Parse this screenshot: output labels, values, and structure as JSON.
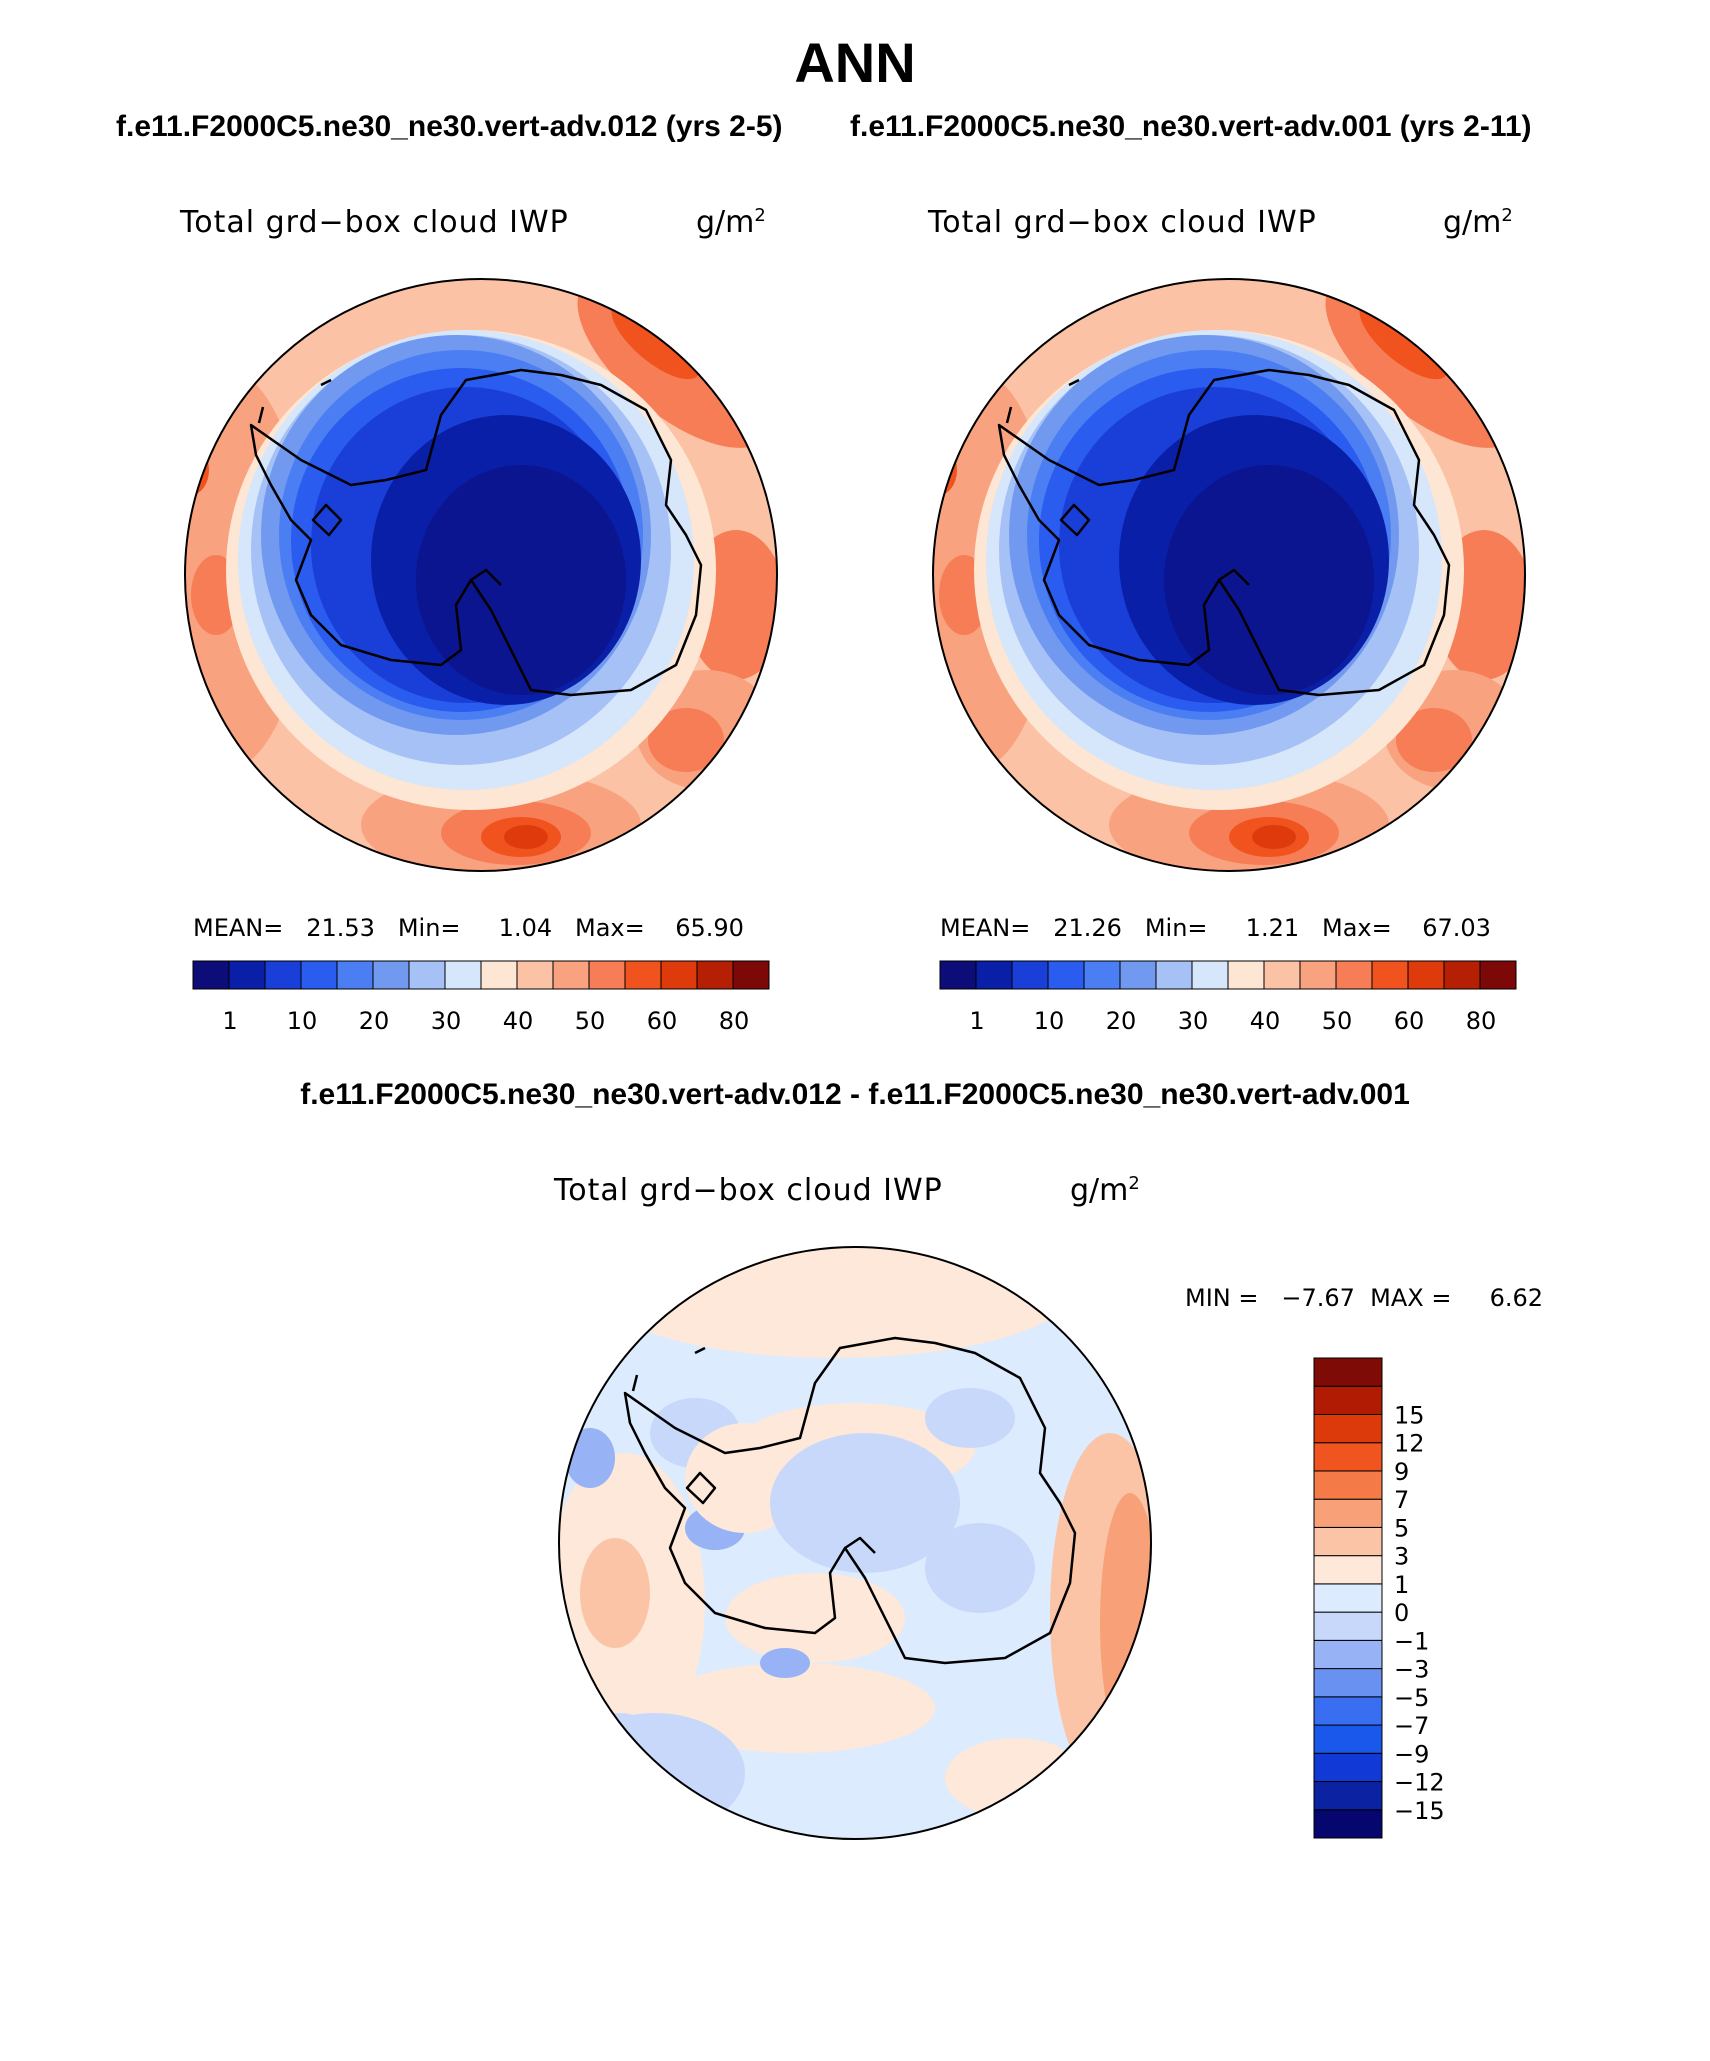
{
  "page": {
    "title": "ANN",
    "case_left_title": "f.e11.F2000C5.ne30_ne30.vert-adv.012 (yrs 2-5)",
    "case_right_title": "f.e11.F2000C5.ne30_ne30.vert-adv.001 (yrs 2-11)",
    "diff_title": "f.e11.F2000C5.ne30_ne30.vert-adv.012 - f.e11.F2000C5.ne30_ne30.vert-adv.001"
  },
  "panels": [
    {
      "variable": "Total grd−box cloud IWP",
      "unit_base": "g/m",
      "unit_exp": "2",
      "stats": "MEAN=   21.53   Min=     1.04   Max=    65.90"
    },
    {
      "variable": "Total grd−box cloud IWP",
      "unit_base": "g/m",
      "unit_exp": "2",
      "stats": "MEAN=   21.26   Min=     1.21   Max=    67.03"
    },
    {
      "variable": "Total grd−box cloud IWP",
      "unit_base": "g/m",
      "unit_exp": "2",
      "stats": "MIN =   −7.67  MAX =     6.62"
    }
  ],
  "colorbars": {
    "absolute": {
      "colors": [
        "#0d0d7a",
        "#0a1fa8",
        "#1a3fd8",
        "#2a5cf0",
        "#4a7ef2",
        "#7199f0",
        "#a6c1f5",
        "#d6e6fb",
        "#fde6d3",
        "#fcc2a5",
        "#f9a27f",
        "#f67d55",
        "#f1531f",
        "#de3a0c",
        "#b52005",
        "#7d0808"
      ],
      "tick_labels": [
        "1",
        "10",
        "20",
        "30",
        "40",
        "50",
        "60",
        "80"
      ]
    },
    "difference": {
      "colors": [
        "#05066e",
        "#0b22a2",
        "#1039d6",
        "#1a58ec",
        "#3a6ef2",
        "#6891f2",
        "#97b3f5",
        "#c7d8fa",
        "#dcebfd",
        "#fde8da",
        "#fbc4a6",
        "#f8a078",
        "#f47a48",
        "#f0541f",
        "#dd3a0c",
        "#b21b03",
        "#7e0b06"
      ],
      "tick_labels": [
        "−15",
        "−12",
        "−9",
        "−7",
        "−5",
        "−3",
        "−1",
        "0",
        "1",
        "3",
        "5",
        "7",
        "9",
        "12",
        "15"
      ]
    }
  }
}
